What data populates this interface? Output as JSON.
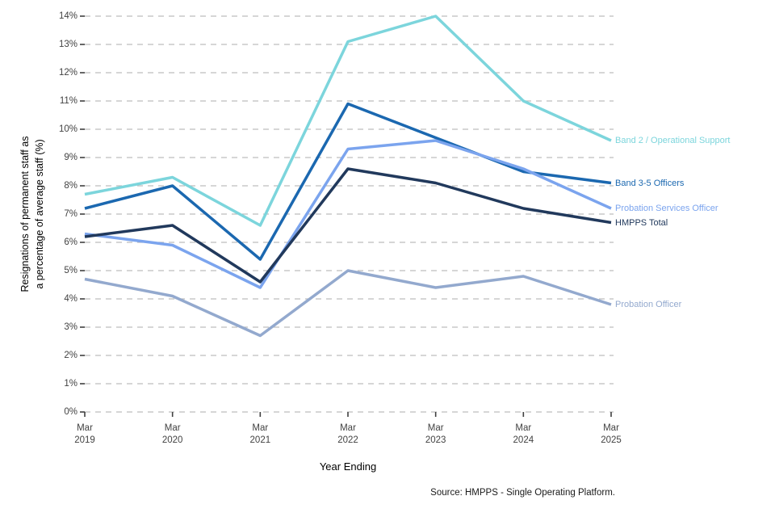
{
  "chart_data": {
    "type": "line",
    "title": "",
    "xlabel": "Year Ending",
    "ylabel": "Resignations of permanent staff as a percentage of average staff (%)",
    "ylabel_lines": [
      "Resignations of permanent staff as",
      "a percentage of average staff (%)"
    ],
    "categories": [
      "Mar 2019",
      "Mar 2020",
      "Mar 2021",
      "Mar 2022",
      "Mar 2023",
      "Mar 2024",
      "Mar 2025"
    ],
    "ylim": [
      0,
      14
    ],
    "ytick_step": 1,
    "ytick_suffix": "%",
    "grid": "dashed-horizontal",
    "legend_position": "right-edge-direct-labels",
    "series": [
      {
        "name": "Band 2 / Operational Support",
        "color": "#7CD5DC",
        "values": [
          7.7,
          8.3,
          6.6,
          13.1,
          14.0,
          11.0,
          9.6
        ]
      },
      {
        "name": "Band 3-5 Officers",
        "color": "#1B68B0",
        "values": [
          7.2,
          8.0,
          5.4,
          10.9,
          9.7,
          8.5,
          8.1
        ]
      },
      {
        "name": "Probation Services Officer",
        "color": "#7BA4EE",
        "values": [
          6.3,
          5.9,
          4.4,
          9.3,
          9.6,
          8.6,
          7.2
        ]
      },
      {
        "name": "HMPPS Total",
        "color": "#21395C",
        "values": [
          6.2,
          6.6,
          4.6,
          8.6,
          8.1,
          7.2,
          6.7
        ]
      },
      {
        "name": "Probation Officer",
        "color": "#93A9CE",
        "values": [
          4.7,
          4.1,
          2.7,
          5.0,
          4.4,
          4.8,
          3.8
        ]
      }
    ],
    "source": "Source: HMPPS - Single Operating Platform.",
    "axis_colors": {
      "gridline": "#bdbdbd",
      "tick": "#404040",
      "tick_label": "#424242"
    }
  }
}
